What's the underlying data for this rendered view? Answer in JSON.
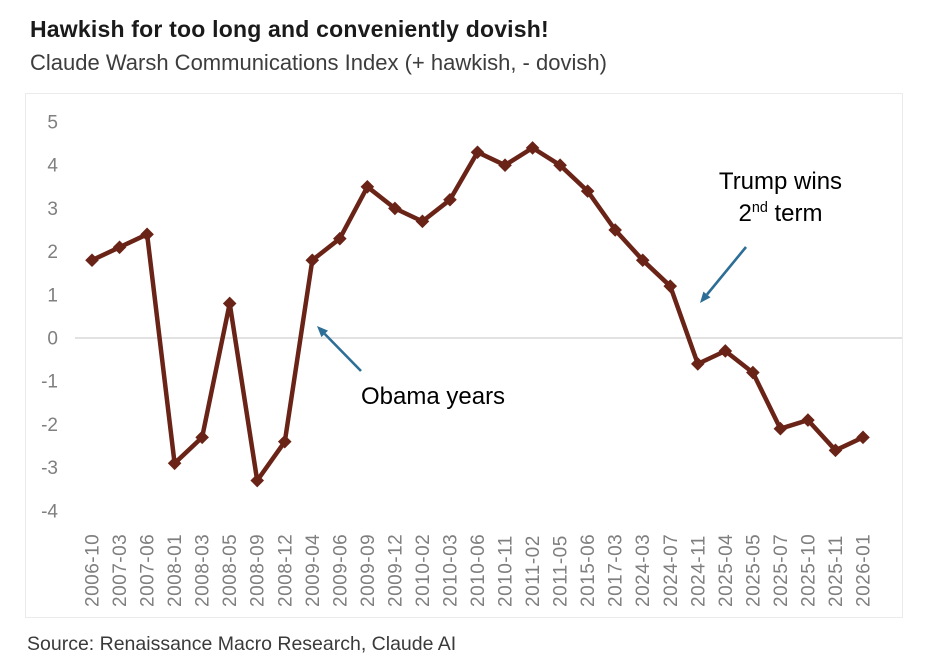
{
  "header": {
    "title": "Hawkish for too long and conveniently dovish!",
    "subtitle": "Claude Warsh Communications Index (+ hawkish, - dovish)"
  },
  "chart_data": {
    "type": "line",
    "title": "Hawkish for too long and conveniently dovish!",
    "subtitle": "Claude Warsh Communications Index (+ hawkish, - dovish)",
    "series_name": "Claude Warsh Communications Index",
    "categories": [
      "2006-10",
      "2007-03",
      "2007-06",
      "2008-01",
      "2008-03",
      "2008-05",
      "2008-09",
      "2008-12",
      "2009-04",
      "2009-06",
      "2009-09",
      "2009-12",
      "2010-02",
      "2010-03",
      "2010-06",
      "2010-11",
      "2011-02",
      "2011-05",
      "2015-06",
      "2017-03",
      "2024-03",
      "2024-07",
      "2024-11",
      "2025-04",
      "2025-05",
      "2025-07",
      "2025-10",
      "2025-11",
      "2026-01"
    ],
    "values": [
      1.8,
      2.1,
      2.4,
      -2.9,
      -2.3,
      0.8,
      -3.3,
      -2.4,
      1.8,
      2.3,
      3.5,
      3.0,
      2.7,
      3.2,
      4.3,
      4.0,
      4.4,
      4.0,
      3.4,
      2.5,
      1.8,
      1.2,
      -0.6,
      -0.3,
      -0.8,
      -2.1,
      -1.9,
      -2.6,
      -2.3
    ],
    "ylim": [
      -4,
      5
    ],
    "yticks": [
      5,
      4,
      3,
      2,
      1,
      0,
      -1,
      -2,
      -3,
      -4
    ],
    "grid": "zero-line-only",
    "legend": "none",
    "marker": "diamond",
    "annotations": [
      {
        "id": "obama",
        "text": "Obama years"
      },
      {
        "id": "trump",
        "line1": "Trump wins",
        "line2_base": "2",
        "line2_sup": "nd",
        "line2_rest": " term"
      }
    ]
  },
  "source": {
    "text": "Source: Renaissance Macro Research, Claude AI"
  },
  "colors": {
    "line": "#6a2317",
    "marker": "#6a2317",
    "arrow": "#2d6e96",
    "axis_label": "#7f7f7f",
    "zero_gridline": "#d9d9d9",
    "frame": "#ebebeb",
    "title": "#1a1a1a",
    "subtitle": "#3d3d3d",
    "annotation_text": "#000000",
    "source_text": "#3a3a3a"
  }
}
